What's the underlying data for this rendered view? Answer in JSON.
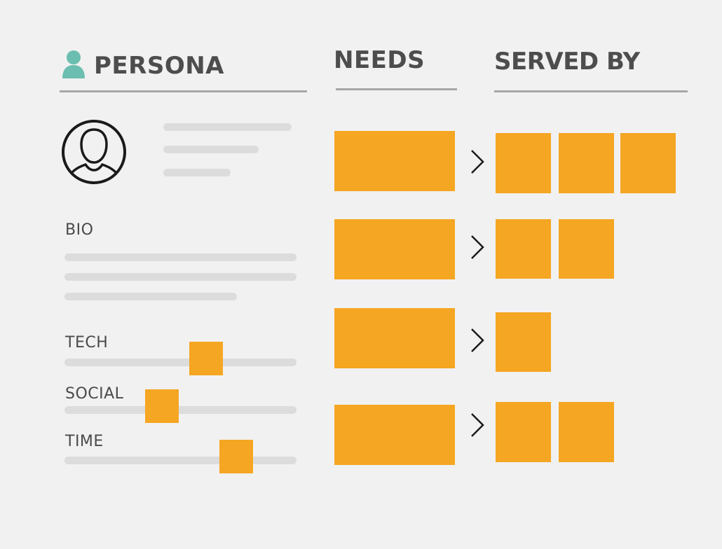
{
  "columns": {
    "persona": {
      "title": "PERSONA",
      "icon": "person-icon"
    },
    "needs": {
      "title": "NEEDS"
    },
    "served_by": {
      "title": "SERVED BY"
    }
  },
  "persona_card": {
    "avatar_icon": "user-circle-icon",
    "bio_label": "BIO",
    "sliders": [
      {
        "label": "TECH",
        "level": 0.61
      },
      {
        "label": "SOCIAL",
        "level": 0.42
      },
      {
        "label": "TIME",
        "level": 0.74
      }
    ]
  },
  "rows": [
    {
      "need_icon": "chevron-right-icon",
      "served_by_count": 3
    },
    {
      "need_icon": "chevron-right-icon",
      "served_by_count": 2
    },
    {
      "need_icon": "chevron-right-icon",
      "served_by_count": 1
    },
    {
      "need_icon": "chevron-right-icon",
      "served_by_count": 2
    }
  ],
  "colors": {
    "accent": "#f5a623",
    "icon_teal": "#6cbfb0",
    "placeholder_line": "#dcdcdc",
    "rule": "#a6a6a6",
    "background": "#f1f1f1"
  }
}
